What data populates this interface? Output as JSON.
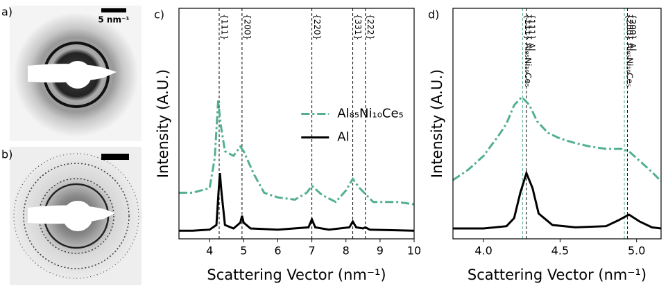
{
  "images": [
    {
      "label": "a)",
      "scale_bar": "5 nm⁻¹"
    },
    {
      "label": "b)"
    }
  ],
  "chart_data": [
    {
      "type": "line",
      "label": "c)",
      "xlabel": "Scattering Vector (nm⁻¹)",
      "ylabel": "Intensity (A.U.)",
      "xlim": [
        3.1,
        10
      ],
      "xticks": [
        4,
        5,
        6,
        7,
        8,
        9,
        10
      ],
      "ylim": [
        0,
        1
      ],
      "legend": "center right",
      "series": [
        {
          "name": "Al₈₅Ni₁₀Ce₅",
          "color": "#52b08f",
          "dash": "dashdot",
          "x": [
            3.1,
            3.5,
            4.0,
            4.15,
            4.25,
            4.32,
            4.45,
            4.7,
            4.9,
            5.0,
            5.3,
            5.6,
            6.0,
            6.5,
            6.85,
            7.0,
            7.3,
            7.7,
            8.0,
            8.2,
            8.4,
            8.6,
            8.8,
            9.5,
            10
          ],
          "values": [
            0.2,
            0.2,
            0.22,
            0.35,
            0.6,
            0.5,
            0.38,
            0.36,
            0.4,
            0.38,
            0.28,
            0.2,
            0.18,
            0.17,
            0.2,
            0.23,
            0.19,
            0.16,
            0.21,
            0.26,
            0.22,
            0.19,
            0.16,
            0.16,
            0.15
          ]
        },
        {
          "name": "Al",
          "color": "#000000",
          "dash": "solid",
          "x": [
            3.1,
            3.5,
            4.0,
            4.2,
            4.26,
            4.3,
            4.35,
            4.45,
            4.7,
            4.9,
            4.95,
            5.0,
            5.2,
            6.0,
            6.9,
            7.0,
            7.1,
            7.5,
            8.1,
            8.2,
            8.3,
            8.5,
            8.57,
            8.7,
            10
          ],
          "values": [
            0.035,
            0.035,
            0.04,
            0.06,
            0.2,
            0.285,
            0.2,
            0.06,
            0.045,
            0.07,
            0.1,
            0.07,
            0.045,
            0.04,
            0.05,
            0.085,
            0.05,
            0.04,
            0.05,
            0.075,
            0.05,
            0.045,
            0.05,
            0.04,
            0.035
          ]
        }
      ],
      "annotations": [
        {
          "x": 4.28,
          "label": "{111}",
          "color": "#000000"
        },
        {
          "x": 4.95,
          "label": "{200}",
          "color": "#000000"
        },
        {
          "x": 7.0,
          "label": "{220}",
          "color": "#000000"
        },
        {
          "x": 8.2,
          "label": "{331}",
          "color": "#000000"
        },
        {
          "x": 8.57,
          "label": "{222}",
          "color": "#000000"
        }
      ]
    },
    {
      "type": "line",
      "label": "d)",
      "xlabel": "Scattering Vector (nm⁻¹)",
      "ylabel": "Intensity (A.U.)",
      "xlim": [
        3.8,
        5.16
      ],
      "xticks": [
        {
          "value": 4,
          "label": "4.0"
        },
        {
          "value": 4.5,
          "label": "4.5"
        },
        {
          "value": 5,
          "label": "5.0"
        }
      ],
      "ylim": [
        0,
        1
      ],
      "series": [
        {
          "name": "Al₈₅Ni₁₀Ce₅",
          "color": "#52b08f",
          "dash": "dashdot",
          "x": [
            3.8,
            3.9,
            4.0,
            4.1,
            4.15,
            4.2,
            4.25,
            4.3,
            4.35,
            4.42,
            4.5,
            4.6,
            4.7,
            4.8,
            4.9,
            4.95,
            5.0,
            5.1,
            5.16
          ],
          "values": [
            0.255,
            0.3,
            0.36,
            0.45,
            0.5,
            0.58,
            0.615,
            0.58,
            0.51,
            0.46,
            0.435,
            0.415,
            0.4,
            0.39,
            0.39,
            0.38,
            0.35,
            0.29,
            0.25
          ]
        },
        {
          "name": "Al",
          "color": "#000000",
          "dash": "solid",
          "x": [
            3.8,
            4.0,
            4.15,
            4.2,
            4.24,
            4.28,
            4.32,
            4.36,
            4.45,
            4.6,
            4.8,
            4.88,
            4.95,
            5.02,
            5.1,
            5.16
          ],
          "values": [
            0.045,
            0.045,
            0.055,
            0.09,
            0.2,
            0.285,
            0.22,
            0.11,
            0.06,
            0.05,
            0.055,
            0.08,
            0.105,
            0.075,
            0.05,
            0.045
          ]
        }
      ],
      "annotations": [
        {
          "x": 4.255,
          "label": "{111} Al₈₅Ni₁₀Ce₅",
          "color": "#52b08f"
        },
        {
          "x": 4.28,
          "label": "{111} Al",
          "color": "#000000"
        },
        {
          "x": 4.92,
          "label": "{200} Al₈₅Ni₁₀Ce₅",
          "color": "#52b08f"
        },
        {
          "x": 4.94,
          "label": "{200} Al",
          "color": "#000000"
        }
      ]
    }
  ]
}
